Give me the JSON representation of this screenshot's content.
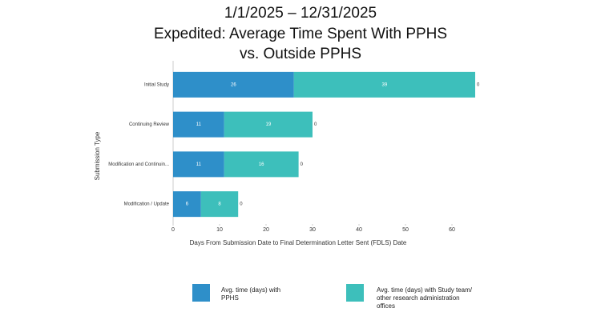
{
  "chart_data": {
    "type": "stacked-bar-horizontal",
    "title": [
      "1/1/2025 – 12/31/2025",
      "Expedited: Average Time Spent With PPHS",
      "vs. Outside PPHS"
    ],
    "categories": [
      "Initial Study",
      "Continuing Review",
      "Modification and Continuin...",
      "Modification / Update"
    ],
    "series": [
      {
        "name": "Avg. time (days) with PPHS",
        "color": "#2e8fc9",
        "values": [
          26,
          11,
          11,
          6
        ]
      },
      {
        "name": "Avg. time (days) with Study team/ other research administration offices",
        "color": "#3dbfbb",
        "values": [
          39,
          19,
          16,
          8
        ]
      },
      {
        "values": [
          0,
          0,
          0,
          0
        ]
      }
    ],
    "x_label": "Days From Submission Date to Final Determination Letter Sent (FDLS) Date",
    "y_label": "Submission Type",
    "xlim": [
      0,
      65
    ],
    "xticks": [
      0,
      10,
      20,
      30,
      40,
      50,
      60
    ]
  }
}
